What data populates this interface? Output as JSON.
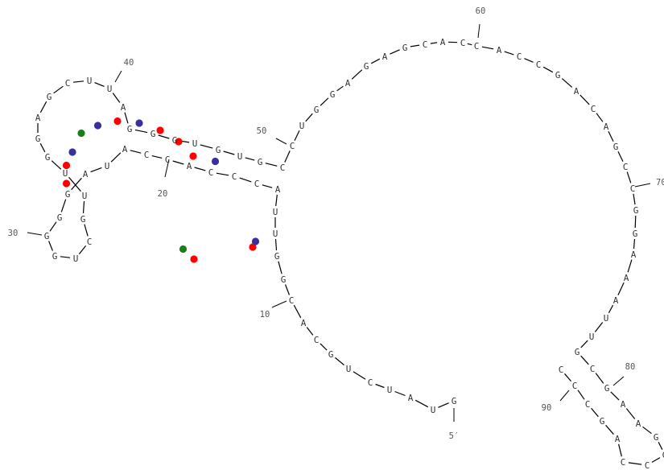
{
  "diagram": {
    "type": "rna-secondary-structure",
    "nucleotides": [
      "G",
      "U",
      "A",
      "U",
      "C",
      "U",
      "G",
      "C",
      "A",
      "C",
      "G",
      "G",
      "U",
      "U",
      "A",
      "C",
      "C",
      "C",
      "A",
      "C",
      "C",
      "A",
      "U",
      "A",
      "G",
      "G",
      "G",
      "G",
      "U",
      "C",
      "G",
      "U",
      "U",
      "G",
      "G",
      "A",
      "G",
      "C",
      "U",
      "U",
      "A",
      "G",
      "G",
      "G",
      "U",
      "G",
      "U",
      "G",
      "C",
      "C",
      "U",
      "G",
      "G",
      "A",
      "G",
      "A",
      "G",
      "C",
      "A",
      "C",
      "C",
      "A",
      "C",
      "C",
      "G",
      "A",
      "C",
      "A",
      "G",
      "C",
      "C",
      "G",
      "G",
      "A",
      "A",
      "A",
      "U",
      "U",
      "G",
      "C",
      "G",
      "A",
      "A",
      "G",
      "G",
      "C",
      "C",
      "A",
      "G",
      "C",
      "C",
      "C"
    ],
    "labels": {
      "five_prime": "5′",
      "n10": "10",
      "n20": "20",
      "n30": "30",
      "n40": "40",
      "n50": "50",
      "n60": "60",
      "n70": "70",
      "n80": "80",
      "n90": "90"
    },
    "pair_colors": {
      "GC": "#ff0000",
      "AU": "#3a2f9c",
      "GU": "#1a7f1a"
    },
    "pairs": [
      {
        "a": 15,
        "b": 43,
        "type": "AU"
      },
      {
        "a": 16,
        "b": 42,
        "type": "GC"
      },
      {
        "a": 17,
        "b": 41,
        "type": "GC"
      },
      {
        "a": 18,
        "b": 40,
        "type": "GC"
      },
      {
        "a": 19,
        "b": 39,
        "type": "AU"
      },
      {
        "a": 20,
        "b": 38,
        "type": "GC"
      },
      {
        "a": 21,
        "b": 37,
        "type": "AU"
      },
      {
        "a": 22,
        "b": 36,
        "type": "GU"
      },
      {
        "a": 23,
        "b": 35,
        "type": "AU"
      },
      {
        "a": 24,
        "b": 34,
        "type": "GC"
      },
      {
        "a": 25,
        "b": 33,
        "type": "GC"
      },
      {
        "a": 31,
        "b": 11,
        "type": "GU"
      },
      {
        "a": 32,
        "b": 9,
        "type": "GC"
      },
      {
        "a": 44,
        "b": 7,
        "type": "GC"
      },
      {
        "a": 45,
        "b": 8,
        "type": "AU"
      }
    ]
  }
}
